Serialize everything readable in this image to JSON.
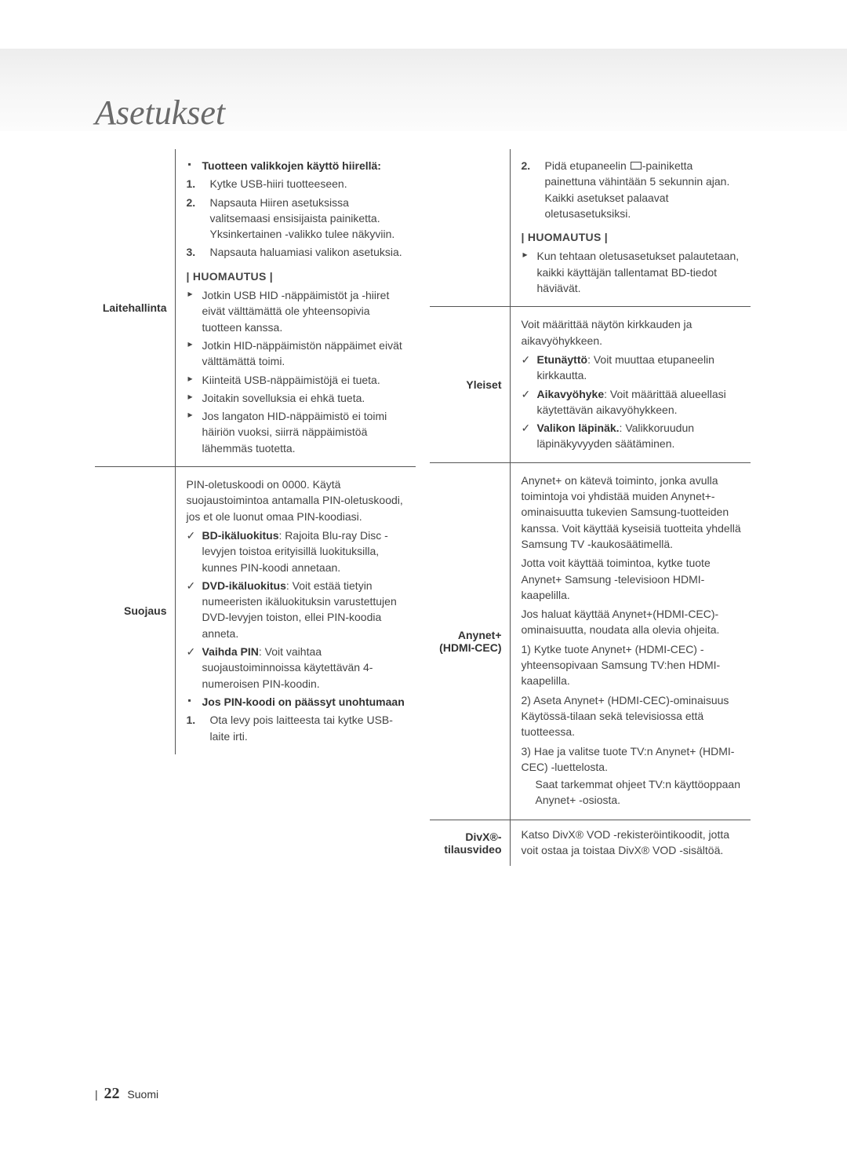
{
  "page": {
    "title": "Asetukset",
    "number": "22",
    "lang": "Suomi"
  },
  "left": {
    "row1": {
      "label": "Laitehallinta",
      "heading": "Tuotteen valikkojen käyttö hiirellä:",
      "steps": {
        "s1n": "1.",
        "s1": "Kytke USB-hiiri tuotteeseen.",
        "s2n": "2.",
        "s2": "Napsauta Hiiren asetuksissa valitsemaasi ensisijaista painiketta. Yksinkertainen -valikko tulee näkyviin.",
        "s3n": "3.",
        "s3": "Napsauta haluamiasi valikon asetuksia."
      },
      "note_label": "| HUOMAUTUS |",
      "notes": {
        "n1": "Jotkin USB HID -näppäimistöt ja -hiiret eivät välttämättä ole yhteensopivia tuotteen kanssa.",
        "n2": "Jotkin HID-näppäimistön näppäimet eivät välttämättä toimi.",
        "n3": "Kiinteitä USB-näppäimistöjä ei tueta.",
        "n4": "Joitakin sovelluksia ei ehkä tueta.",
        "n5": "Jos langaton HID-näppäimistö ei toimi häiriön vuoksi, siirrä näppäimistöä lähemmäs tuotetta."
      }
    },
    "row2": {
      "label": "Suojaus",
      "intro": "PIN-oletuskoodi on 0000. Käytä suojaustoimintoa antamalla PIN-oletuskoodi, jos et ole luonut omaa PIN-koodiasi.",
      "c1b": "BD-ikäluokitus",
      "c1": ": Rajoita Blu-ray Disc -levyjen toistoa erityisillä luokituksilla, kunnes PIN-koodi annetaan.",
      "c2b": "DVD-ikäluokitus",
      "c2": ": Voit estää tietyin numeeristen ikäluokituksin varustettujen DVD-levyjen toiston, ellei PIN-koodia anneta.",
      "c3b": "Vaihda PIN",
      "c3": ": Voit vaihtaa suojaustoiminnoissa käytettävän 4-numeroisen PIN-koodin.",
      "sub_heading": "Jos PIN-koodi on päässyt unohtumaan",
      "s1n": "1.",
      "s1": "Ota levy pois laitteesta tai kytke USB-laite irti."
    }
  },
  "right": {
    "row1": {
      "s2n": "2.",
      "s2a": "Pidä etupaneelin ",
      "s2b": "-painiketta painettuna vähintään 5 sekunnin ajan.",
      "s2c": "Kaikki asetukset palaavat oletusasetuksiksi.",
      "note_label": "| HUOMAUTUS |",
      "note": "Kun tehtaan oletusasetukset palautetaan, kaikki käyttäjän tallentamat BD-tiedot häviävät."
    },
    "row2": {
      "label": "Yleiset",
      "intro": "Voit määrittää näytön kirkkauden ja aikavyöhykkeen.",
      "c1b": "Etunäyttö",
      "c1": ": Voit muuttaa etupaneelin kirkkautta.",
      "c2b": "Aikavyöhyke",
      "c2": ": Voit määrittää alueellasi käytettävän aikavyöhykkeen.",
      "c3b": "Valikon läpinäk.",
      "c3": ": Valikkoruudun läpinäkyvyyden säätäminen."
    },
    "row3": {
      "label": "Anynet+ (HDMI-CEC)",
      "p1": "Anynet+ on kätevä toiminto, jonka avulla toimintoja voi yhdistää muiden Anynet+-ominaisuutta tukevien Samsung-tuotteiden kanssa. Voit käyttää kyseisiä tuotteita yhdellä Samsung TV -kaukosäätimellä.",
      "p2": "Jotta voit käyttää toimintoa, kytke tuote Anynet+ Samsung -televisioon HDMI-kaapelilla.",
      "p3": "Jos haluat käyttää Anynet+(HDMI-CEC)-ominaisuutta, noudata alla olevia ohjeita.",
      "s1": "1) Kytke tuote Anynet+ (HDMI-CEC) -yhteensopivaan Samsung TV:hen HDMI-kaapelilla.",
      "s2": "2) Aseta Anynet+ (HDMI-CEC)-ominaisuus Käytössä-tilaan sekä televisiossa että tuotteessa.",
      "s3": "3) Hae ja valitse tuote TV:n Anynet+ (HDMI-CEC) -luettelosta.",
      "s3b": "Saat tarkemmat ohjeet TV:n käyttöoppaan Anynet+ -osiosta."
    },
    "row4": {
      "label": "DivX®-tilausvideo",
      "text": "Katso DivX® VOD -rekisteröintikoodit, jotta voit ostaa ja toistaa DivX® VOD -sisältöä."
    }
  }
}
